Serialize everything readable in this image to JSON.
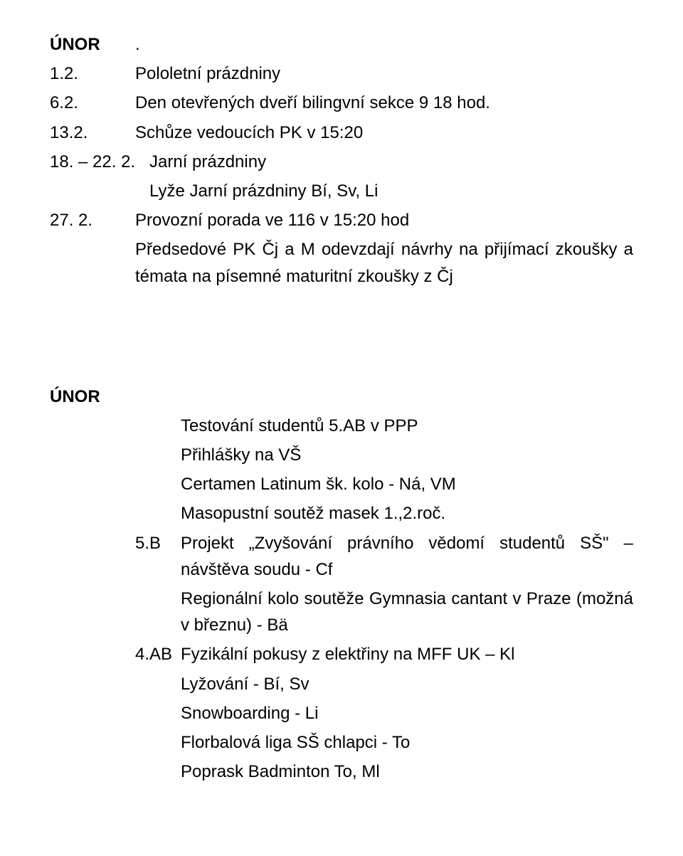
{
  "section1": {
    "heading_date": "ÚNOR",
    "heading_sep": ".",
    "r1": {
      "date": "1.2.",
      "text": "Pololetní prázdniny"
    },
    "r2": {
      "date": "6.2.",
      "text": "Den otevřených dveří bilingvní sekce  9 18 hod."
    },
    "r3": {
      "date": "13.2.",
      "text": "Schůze vedoucích PK v 15:20"
    },
    "r4": {
      "date": "18. – 22. 2.",
      "text": "Jarní prázdniny"
    },
    "r4b": "Lyže Jarní prázdniny Bí, Sv, Li",
    "r5": {
      "date": "27. 2.",
      "text": "Provozní porada ve 116 v 15:20 hod"
    },
    "r5b": "Předsedové PK Čj a M odevzdají návrhy na přijímací zkoušky a témata na písemné maturitní zkoušky z Čj"
  },
  "section2": {
    "heading": "ÚNOR",
    "l1": "Testování studentů 5.AB v PPP",
    "l2": "Přihlášky na VŠ",
    "l3": "Certamen Latinum šk. kolo - Ná, VM",
    "l4": "Masopustní soutěž masek 1.,2.roč.",
    "r1": {
      "label": "5.B",
      "text": "Projekt „Zvyšování právního vědomí studentů SŠ\" – návštěva soudu - Cf"
    },
    "l5": "Regionální kolo soutěže Gymnasia cantant v Praze (možná v březnu) - Bä",
    "r2": {
      "label": "4.AB",
      "text": "Fyzikální pokusy z elektřiny na MFF UK – Kl"
    },
    "l6": "Lyžování - Bí, Sv",
    "l7": "Snowboarding - Li",
    "l8": "Florbalová liga SŠ chlapci - To",
    "l9": "Poprask Badminton To, Ml"
  }
}
